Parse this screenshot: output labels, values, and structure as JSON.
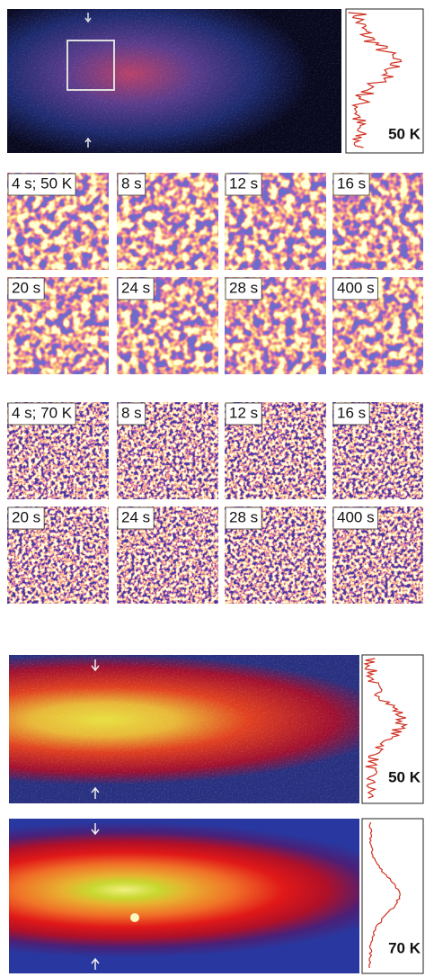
{
  "top_panel": {
    "label": "50 K"
  },
  "series_50K": {
    "frames": [
      "4 s; 50 K",
      "8 s",
      "12 s",
      "16 s",
      "20 s",
      "24 s",
      "28 s",
      "400 s"
    ]
  },
  "series_70K": {
    "frames": [
      "4 s; 70 K",
      "8 s",
      "12 s",
      "16 s",
      "20 s",
      "24 s",
      "28 s",
      "400 s"
    ]
  },
  "bottom_panels": [
    {
      "label": "50 K"
    },
    {
      "label": "70 K"
    }
  ]
}
